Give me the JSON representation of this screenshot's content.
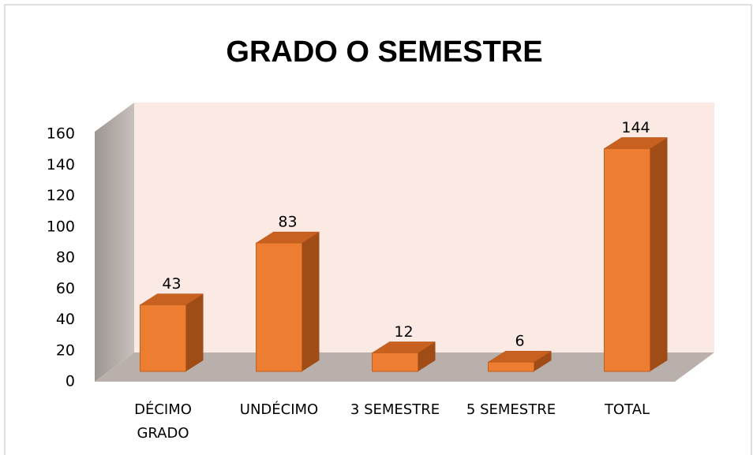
{
  "chart_data": {
    "type": "bar3d",
    "title": "GRADO O SEMESTRE",
    "categories": [
      "DÉCIMO GRADO",
      "UNDÉCIMO",
      "3 SEMESTRE",
      "5 SEMESTRE",
      "TOTAL"
    ],
    "values": [
      43,
      83,
      12,
      6,
      144
    ],
    "color": "#ED7D31",
    "ylim": [
      0,
      160
    ],
    "yticks": [
      0,
      20,
      40,
      60,
      80,
      100,
      120,
      140,
      160
    ],
    "grid": false
  }
}
